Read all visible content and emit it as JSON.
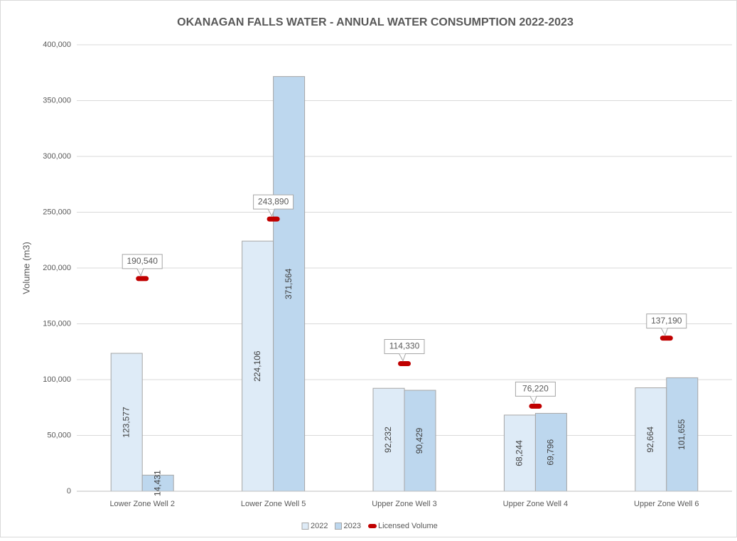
{
  "chart_data": {
    "type": "bar",
    "title": "OKANAGAN FALLS WATER - ANNUAL WATER CONSUMPTION 2022-2023",
    "y_label": "Volume (m3)",
    "categories": [
      "Lower Zone Well 2",
      "Lower Zone Well 5",
      "Upper Zone Well 3",
      "Upper Zone Well 4",
      "Upper Zone Well 6"
    ],
    "series": [
      {
        "name": "2022",
        "color": "#deebf7",
        "values": [
          123577,
          224106,
          92232,
          68244,
          92664
        ],
        "value_labels": [
          "123,577",
          "224,106",
          "92,232",
          "68,244",
          "92,664"
        ]
      },
      {
        "name": "2023",
        "color": "#bdd7ee",
        "values": [
          14431,
          371564,
          90429,
          69796,
          101655
        ],
        "value_labels": [
          "14,431",
          "371,564",
          "90,429",
          "69,796",
          "101,655"
        ]
      },
      {
        "name": "Licensed Volume",
        "color": "#c00000",
        "marker": "dash",
        "values": [
          190540,
          243890,
          114330,
          76220,
          137190
        ],
        "value_labels": [
          "190,540",
          "243,890",
          "114,330",
          "76,220",
          "137,190"
        ]
      }
    ],
    "ylim": [
      0,
      400000
    ],
    "yticks": [
      0,
      {
        "value": 50000,
        "label": "50,000"
      },
      {
        "value": 100000,
        "label": "100,000"
      },
      {
        "value": 150000,
        "label": "150,000"
      },
      {
        "value": 200000,
        "label": "200,000"
      },
      {
        "value": 250000,
        "label": "250,000"
      },
      {
        "value": 300000,
        "label": "300,000"
      },
      {
        "value": 350000,
        "label": "350,000"
      },
      {
        "value": 400000,
        "label": "400,000"
      }
    ],
    "grid": true,
    "legend": "bottom"
  }
}
